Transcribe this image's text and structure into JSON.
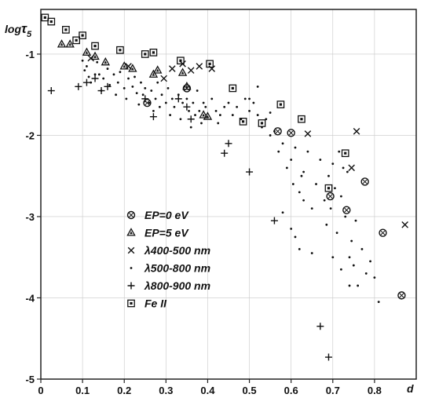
{
  "chart_data": {
    "type": "scatter",
    "title": "",
    "xlabel": "d",
    "ylabel": "logτ5",
    "ylabel_main": "log",
    "ylabel_sub": "τ",
    "ylabel_subscript": "5",
    "xlim": [
      0,
      0.9
    ],
    "ylim": [
      -5.0,
      -0.45
    ],
    "grid": true,
    "legend_position": "lower-left",
    "x_ticks": [
      0.0,
      0.1,
      0.2,
      0.3,
      0.4,
      0.5,
      0.6,
      0.7,
      0.8
    ],
    "x_tick_labels": [
      "0",
      "0.1",
      "0.2",
      "0.3",
      "0.4",
      "0.5",
      "0.6",
      "0.7",
      "0.8"
    ],
    "y_ticks": [
      -1,
      -2,
      -3,
      -4,
      -5
    ],
    "y_tick_labels": [
      "-1",
      "-2",
      "-3",
      "-4",
      "-5"
    ],
    "series": [
      {
        "name": "EP=0 eV",
        "marker": "circle-x",
        "points": [
          [
            0.255,
            -1.6
          ],
          [
            0.568,
            -1.95
          ],
          [
            0.6,
            -1.97
          ],
          [
            0.694,
            -2.75
          ],
          [
            0.733,
            -2.92
          ],
          [
            0.777,
            -2.57
          ],
          [
            0.82,
            -3.2
          ],
          [
            0.865,
            -3.97
          ],
          [
            0.35,
            -1.42
          ]
        ]
      },
      {
        "name": "EP=5 eV",
        "marker": "triangle",
        "points": [
          [
            0.05,
            -0.88
          ],
          [
            0.07,
            -0.88
          ],
          [
            0.11,
            -0.98
          ],
          [
            0.13,
            -1.03
          ],
          [
            0.155,
            -1.1
          ],
          [
            0.2,
            -1.15
          ],
          [
            0.22,
            -1.18
          ],
          [
            0.27,
            -1.25
          ],
          [
            0.28,
            -1.2
          ],
          [
            0.34,
            -1.23
          ],
          [
            0.35,
            -1.4
          ],
          [
            0.39,
            -1.75
          ],
          [
            0.4,
            -1.77
          ]
        ]
      },
      {
        "name": "λ400-500 nm",
        "marker": "x",
        "points": [
          [
            0.12,
            -1.05
          ],
          [
            0.21,
            -1.15
          ],
          [
            0.295,
            -1.3
          ],
          [
            0.315,
            -1.18
          ],
          [
            0.34,
            -1.12
          ],
          [
            0.36,
            -1.2
          ],
          [
            0.38,
            -1.15
          ],
          [
            0.41,
            -1.18
          ],
          [
            0.64,
            -1.98
          ],
          [
            0.745,
            -2.4
          ],
          [
            0.757,
            -1.95
          ],
          [
            0.873,
            -3.1
          ]
        ]
      },
      {
        "name": "λ500-800 nm",
        "marker": "dot",
        "points": [
          [
            0.1,
            -1.08
          ],
          [
            0.105,
            -1.2
          ],
          [
            0.11,
            -1.15
          ],
          [
            0.115,
            -1.28
          ],
          [
            0.12,
            -1.35
          ],
          [
            0.13,
            -1.25
          ],
          [
            0.135,
            -1.1
          ],
          [
            0.14,
            -1.25
          ],
          [
            0.145,
            -1.45
          ],
          [
            0.15,
            -1.3
          ],
          [
            0.16,
            -1.18
          ],
          [
            0.165,
            -1.38
          ],
          [
            0.175,
            -1.25
          ],
          [
            0.18,
            -1.5
          ],
          [
            0.185,
            -1.35
          ],
          [
            0.19,
            -1.22
          ],
          [
            0.2,
            -1.42
          ],
          [
            0.205,
            -1.55
          ],
          [
            0.21,
            -1.3
          ],
          [
            0.22,
            -1.4
          ],
          [
            0.225,
            -1.28
          ],
          [
            0.23,
            -1.48
          ],
          [
            0.235,
            -1.62
          ],
          [
            0.24,
            -1.35
          ],
          [
            0.245,
            -1.5
          ],
          [
            0.25,
            -1.42
          ],
          [
            0.26,
            -1.6
          ],
          [
            0.265,
            -1.45
          ],
          [
            0.27,
            -1.7
          ],
          [
            0.275,
            -1.55
          ],
          [
            0.28,
            -1.35
          ],
          [
            0.285,
            -1.65
          ],
          [
            0.29,
            -1.5
          ],
          [
            0.3,
            -1.6
          ],
          [
            0.305,
            -1.42
          ],
          [
            0.31,
            -1.75
          ],
          [
            0.315,
            -1.55
          ],
          [
            0.32,
            -1.65
          ],
          [
            0.33,
            -1.5
          ],
          [
            0.335,
            -1.8
          ],
          [
            0.34,
            -1.6
          ],
          [
            0.35,
            -1.55
          ],
          [
            0.355,
            -1.7
          ],
          [
            0.36,
            -1.9
          ],
          [
            0.365,
            -1.6
          ],
          [
            0.37,
            -1.75
          ],
          [
            0.375,
            -1.45
          ],
          [
            0.38,
            -1.7
          ],
          [
            0.385,
            -1.85
          ],
          [
            0.39,
            -1.6
          ],
          [
            0.395,
            -1.65
          ],
          [
            0.41,
            -1.55
          ],
          [
            0.42,
            -1.7
          ],
          [
            0.425,
            -1.85
          ],
          [
            0.43,
            -1.75
          ],
          [
            0.44,
            -1.65
          ],
          [
            0.45,
            -1.6
          ],
          [
            0.46,
            -1.75
          ],
          [
            0.47,
            -1.65
          ],
          [
            0.48,
            -1.8
          ],
          [
            0.49,
            -1.55
          ],
          [
            0.5,
            -1.7
          ],
          [
            0.51,
            -1.6
          ],
          [
            0.52,
            -1.75
          ],
          [
            0.53,
            -1.9
          ],
          [
            0.54,
            -1.8
          ],
          [
            0.55,
            -1.72
          ],
          [
            0.56,
            -1.95
          ],
          [
            0.57,
            -2.2
          ],
          [
            0.58,
            -2.1
          ],
          [
            0.59,
            -2.4
          ],
          [
            0.6,
            -2.3
          ],
          [
            0.605,
            -2.6
          ],
          [
            0.61,
            -2.15
          ],
          [
            0.62,
            -2.7
          ],
          [
            0.625,
            -2.5
          ],
          [
            0.63,
            -2.8
          ],
          [
            0.64,
            -2.2
          ],
          [
            0.65,
            -2.9
          ],
          [
            0.66,
            -2.6
          ],
          [
            0.67,
            -2.3
          ],
          [
            0.68,
            -2.8
          ],
          [
            0.685,
            -3.1
          ],
          [
            0.69,
            -2.5
          ],
          [
            0.695,
            -2.9
          ],
          [
            0.7,
            -2.35
          ],
          [
            0.705,
            -2.65
          ],
          [
            0.71,
            -3.2
          ],
          [
            0.72,
            -2.75
          ],
          [
            0.73,
            -3.0
          ],
          [
            0.74,
            -3.5
          ],
          [
            0.745,
            -3.3
          ],
          [
            0.75,
            -3.6
          ],
          [
            0.755,
            -3.05
          ],
          [
            0.76,
            -3.85
          ],
          [
            0.77,
            -3.4
          ],
          [
            0.78,
            -3.7
          ],
          [
            0.79,
            -3.55
          ],
          [
            0.8,
            -3.75
          ],
          [
            0.81,
            -4.05
          ],
          [
            0.62,
            -3.4
          ],
          [
            0.65,
            -3.45
          ],
          [
            0.7,
            -3.5
          ],
          [
            0.72,
            -3.65
          ],
          [
            0.74,
            -3.85
          ],
          [
            0.58,
            -2.95
          ],
          [
            0.6,
            -3.15
          ],
          [
            0.61,
            -3.25
          ],
          [
            0.63,
            -2.45
          ],
          [
            0.55,
            -2.0
          ],
          [
            0.52,
            -1.4
          ],
          [
            0.5,
            -1.55
          ],
          [
            0.715,
            -2.2
          ],
          [
            0.725,
            -2.4
          ],
          [
            0.735,
            -2.45
          ]
        ]
      },
      {
        "name": "λ800-900 nm",
        "marker": "plus",
        "points": [
          [
            0.025,
            -1.45
          ],
          [
            0.09,
            -1.4
          ],
          [
            0.11,
            -1.35
          ],
          [
            0.13,
            -1.3
          ],
          [
            0.145,
            -1.45
          ],
          [
            0.16,
            -1.4
          ],
          [
            0.25,
            -1.55
          ],
          [
            0.27,
            -1.77
          ],
          [
            0.33,
            -1.55
          ],
          [
            0.35,
            -1.65
          ],
          [
            0.36,
            -1.8
          ],
          [
            0.44,
            -2.22
          ],
          [
            0.45,
            -2.1
          ],
          [
            0.5,
            -2.45
          ],
          [
            0.56,
            -3.05
          ],
          [
            0.67,
            -4.35
          ],
          [
            0.69,
            -4.73
          ]
        ]
      },
      {
        "name": "Fe II",
        "marker": "square-dot",
        "points": [
          [
            0.01,
            -0.55
          ],
          [
            0.025,
            -0.6
          ],
          [
            0.06,
            -0.7
          ],
          [
            0.085,
            -0.83
          ],
          [
            0.1,
            -0.77
          ],
          [
            0.13,
            -0.9
          ],
          [
            0.19,
            -0.95
          ],
          [
            0.25,
            -1.0
          ],
          [
            0.27,
            -0.98
          ],
          [
            0.335,
            -1.08
          ],
          [
            0.405,
            -1.12
          ],
          [
            0.46,
            -1.42
          ],
          [
            0.485,
            -1.83
          ],
          [
            0.53,
            -1.85
          ],
          [
            0.575,
            -1.62
          ],
          [
            0.625,
            -1.8
          ],
          [
            0.69,
            -2.65
          ],
          [
            0.73,
            -2.22
          ]
        ]
      }
    ]
  }
}
